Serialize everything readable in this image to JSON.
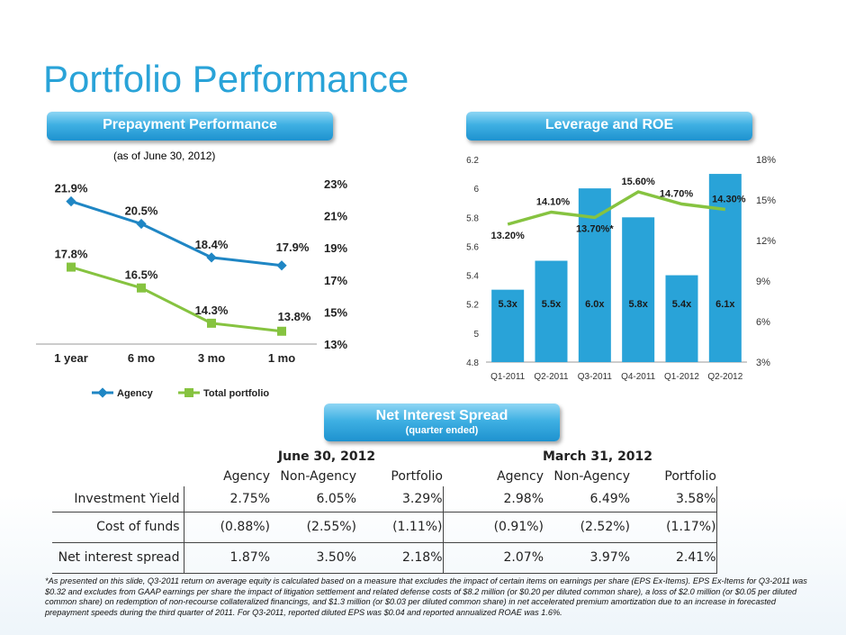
{
  "title": "Portfolio Performance",
  "sections": {
    "prepayment": "Prepayment Performance",
    "leverage": "Leverage and ROE",
    "nis_title": "Net Interest Spread",
    "nis_sub": "(quarter ended)"
  },
  "as_of": "(as of  June 30, 2012)",
  "chart_data": [
    {
      "type": "line",
      "categories": [
        "1 year",
        "6 mo",
        "3 mo",
        "1 mo"
      ],
      "series": [
        {
          "name": "Agency",
          "values": [
            21.9,
            20.5,
            18.4,
            17.9
          ],
          "labels": [
            "21.9%",
            "20.5%",
            "18.4%",
            "17.9%"
          ],
          "color": "#1f86c4"
        },
        {
          "name": "Total portfolio",
          "values": [
            17.8,
            16.5,
            14.3,
            13.8
          ],
          "labels": [
            "17.8%",
            "16.5%",
            "14.3%",
            "13.8%"
          ],
          "color": "#86c340"
        }
      ],
      "ylim": [
        13,
        23
      ],
      "yticks": [
        "13%",
        "15%",
        "17%",
        "19%",
        "21%",
        "23%"
      ],
      "y_axis_side": "right",
      "legend": "bottom"
    },
    {
      "type": "bar",
      "categories": [
        "Q1-2011",
        "Q2-2011",
        "Q3-2011",
        "Q4-2011",
        "Q1-2012",
        "Q2-2012"
      ],
      "bars": {
        "values": [
          5.3,
          5.5,
          6.0,
          5.8,
          5.4,
          6.1
        ],
        "labels": [
          "5.3x",
          "5.5x",
          "6.0x",
          "5.8x",
          "5.4x",
          "6.1x"
        ],
        "color": "#29a3d8"
      },
      "line": {
        "values": [
          13.2,
          14.1,
          13.7,
          15.6,
          14.7,
          14.3
        ],
        "labels": [
          "13.20%",
          "14.10%",
          "13.70%*",
          "15.60%",
          "14.70%",
          "14.30%"
        ],
        "color": "#86c340"
      },
      "left_ylim": [
        4.8,
        6.2
      ],
      "left_yticks": [
        "4.8",
        "5",
        "5.2",
        "5.4",
        "5.6",
        "5.8",
        "6",
        "6.2"
      ],
      "right_ylim": [
        3,
        18
      ],
      "right_yticks": [
        "3%",
        "6%",
        "9%",
        "12%",
        "15%",
        "18%"
      ]
    }
  ],
  "table": {
    "period_headers": [
      "June 30, 2012",
      "March 31, 2012"
    ],
    "col_headers": [
      "Agency",
      "Non-Agency",
      "Portfolio",
      "Agency",
      "Non-Agency",
      "Portfolio"
    ],
    "rows": [
      {
        "label": "Investment Yield",
        "values": [
          "2.75%",
          "6.05%",
          "3.29%",
          "2.98%",
          "6.49%",
          "3.58%"
        ]
      },
      {
        "label": "Cost of funds",
        "values": [
          "(0.88%)",
          "(2.55%)",
          "(1.11%)",
          "(0.91%)",
          "(2.52%)",
          "(1.17%)"
        ]
      },
      {
        "label": "Net interest spread",
        "values": [
          "1.87%",
          "3.50%",
          "2.18%",
          "2.07%",
          "3.97%",
          "2.41%"
        ]
      }
    ]
  },
  "footnote": "*As presented on this slide, Q3-2011 return on average equity is calculated based on a measure that excludes the impact of certain items on earnings per share (EPS Ex-Items).  EPS Ex-Items for Q3-2011 was $0.32 and excludes from GAAP earnings per share the impact of litigation settlement and related defense costs of $8.2 million (or $0.20 per diluted common share), a loss of $2.0 million (or $0.05 per diluted common share) on redemption of non-recourse collateralized financings, and $1.3 million (or $0.03 per diluted common share) in net accelerated premium amortization due to an increase in forecasted prepayment speeds during the third quarter of 2011.  For Q3-2011, reported diluted EPS was $0.04 and reported annualized ROAE was 1.6%."
}
